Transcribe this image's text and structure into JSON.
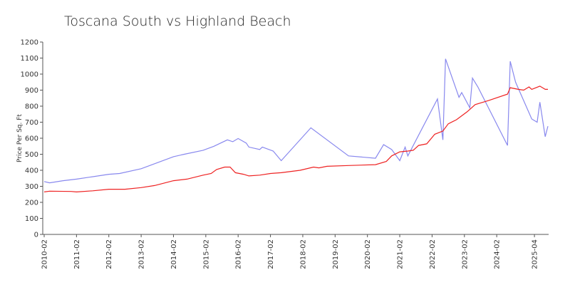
{
  "chart_data": {
    "type": "line",
    "title": "Toscana South vs Highland Beach",
    "y_label": "Price Per Sq. Ft",
    "xlim": [
      "2010-02",
      "2025-09"
    ],
    "xticks": [
      "2010-02",
      "2011-02",
      "2012-02",
      "2013-02",
      "2014-02",
      "2015-02",
      "2016-02",
      "2017-02",
      "2018-02",
      "2019-02",
      "2020-02",
      "2021-02",
      "2022-02",
      "2023-02",
      "2024-02",
      "2025-04"
    ],
    "ylim": [
      0,
      1200
    ],
    "yticks": [
      0,
      100,
      200,
      300,
      400,
      500,
      600,
      700,
      800,
      900,
      1000,
      1100,
      1200
    ],
    "grid": false,
    "series": [
      {
        "color": "#8888ee",
        "x": [
          "2010-02",
          "2010-04",
          "2010-09",
          "2011-02",
          "2012-02",
          "2012-06",
          "2013-02",
          "2014-02",
          "2014-06",
          "2015-01",
          "2015-05",
          "2015-10",
          "2015-12",
          "2016-02",
          "2016-05",
          "2016-06",
          "2016-10",
          "2016-11",
          "2017-03",
          "2017-06",
          "2018-05",
          "2019-07",
          "2020-05",
          "2020-08",
          "2020-11",
          "2021-02",
          "2021-04",
          "2021-05",
          "2022-04",
          "2022-06",
          "2022-07",
          "2022-12",
          "2023-01",
          "2023-04",
          "2023-05",
          "2023-07",
          "2024-06",
          "2024-07",
          "2024-09",
          "2025-03",
          "2025-05",
          "2025-06",
          "2025-08",
          "2025-09"
        ],
        "values": [
          330,
          322,
          335,
          345,
          375,
          380,
          410,
          485,
          500,
          525,
          550,
          590,
          578,
          598,
          570,
          545,
          530,
          545,
          520,
          460,
          665,
          490,
          475,
          560,
          530,
          460,
          545,
          490,
          845,
          590,
          1095,
          855,
          885,
          790,
          975,
          920,
          555,
          1080,
          950,
          720,
          700,
          825,
          610,
          675
        ]
      },
      {
        "color": "#ee2222",
        "x": [
          "2010-02",
          "2010-04",
          "2010-12",
          "2011-02",
          "2011-08",
          "2012-02",
          "2012-08",
          "2013-02",
          "2013-07",
          "2014-02",
          "2014-07",
          "2015-01",
          "2015-04",
          "2015-06",
          "2015-09",
          "2015-11",
          "2016-01",
          "2016-04",
          "2016-06",
          "2016-10",
          "2017-02",
          "2017-06",
          "2018-01",
          "2018-06",
          "2018-08",
          "2018-11",
          "2019-07",
          "2020-05",
          "2020-09",
          "2020-11",
          "2021-02",
          "2021-05",
          "2021-07",
          "2021-09",
          "2021-12",
          "2022-03",
          "2022-06",
          "2022-08",
          "2022-11",
          "2023-03",
          "2023-06",
          "2023-11",
          "2024-06",
          "2024-07",
          "2024-10",
          "2024-12",
          "2025-02",
          "2025-03",
          "2025-06",
          "2025-08",
          "2025-09"
        ],
        "values": [
          265,
          270,
          268,
          265,
          272,
          282,
          282,
          292,
          305,
          335,
          345,
          370,
          380,
          405,
          420,
          420,
          385,
          375,
          365,
          370,
          380,
          385,
          400,
          420,
          415,
          425,
          430,
          435,
          455,
          490,
          515,
          520,
          525,
          555,
          565,
          625,
          645,
          690,
          715,
          765,
          810,
          835,
          875,
          915,
          905,
          900,
          920,
          905,
          925,
          905,
          905
        ]
      }
    ]
  }
}
